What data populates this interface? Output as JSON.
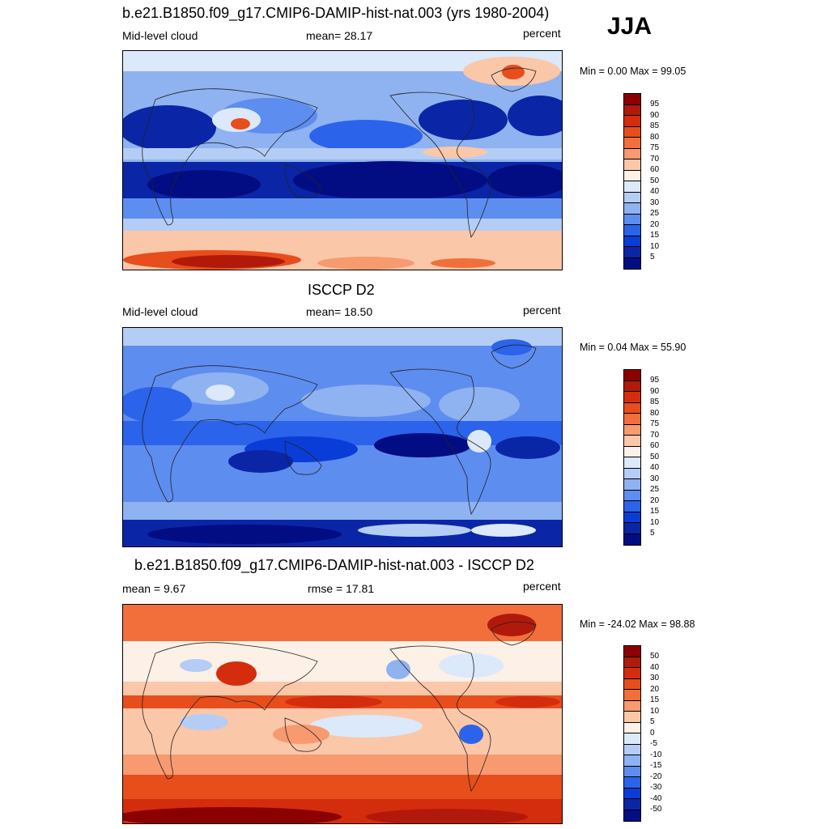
{
  "season": "JJA",
  "panels": [
    {
      "title": "b.e21.B1850.f09_g17.CMIP6-DAMIP-hist-nat.003 (yrs 1980-2004)",
      "left_label": "Mid-level cloud",
      "center_label": "mean=  28.17",
      "right_label": "percent",
      "minmax": "Min =   0.00 Max =  99.05",
      "colorbar_labels": [
        "95",
        "90",
        "85",
        "80",
        "75",
        "70",
        "60",
        "50",
        "40",
        "30",
        "25",
        "20",
        "15",
        "10",
        "5"
      ]
    },
    {
      "title": "ISCCP D2",
      "left_label": "Mid-level cloud",
      "center_label": "mean=  18.50",
      "right_label": "percent",
      "minmax": "Min =   0.04 Max =  55.90",
      "colorbar_labels": [
        "95",
        "90",
        "85",
        "80",
        "75",
        "70",
        "60",
        "50",
        "40",
        "30",
        "25",
        "20",
        "15",
        "10",
        "5"
      ]
    },
    {
      "title": "b.e21.B1850.f09_g17.CMIP6-DAMIP-hist-nat.003 - ISCCP D2",
      "left_label": "mean =   9.67",
      "center_label": "rmse =  17.81",
      "right_label": "percent",
      "minmax": "Min = -24.02 Max =  98.88",
      "colorbar_labels": [
        "50",
        "40",
        "30",
        "20",
        "15",
        "10",
        "5",
        "0",
        "-5",
        "-10",
        "-15",
        "-20",
        "-30",
        "-40",
        "-50"
      ]
    }
  ],
  "colorbar_colors": [
    "#8b0000",
    "#b11a0a",
    "#d42d0d",
    "#e84d1c",
    "#f26f3c",
    "#f89a6f",
    "#fbc7a9",
    "#fdf0e6",
    "#dbe9fa",
    "#b4cdf5",
    "#8fb2f1",
    "#5e8df0",
    "#2b63ea",
    "#0a3dd7",
    "#0a26a6",
    "#020d84"
  ]
}
